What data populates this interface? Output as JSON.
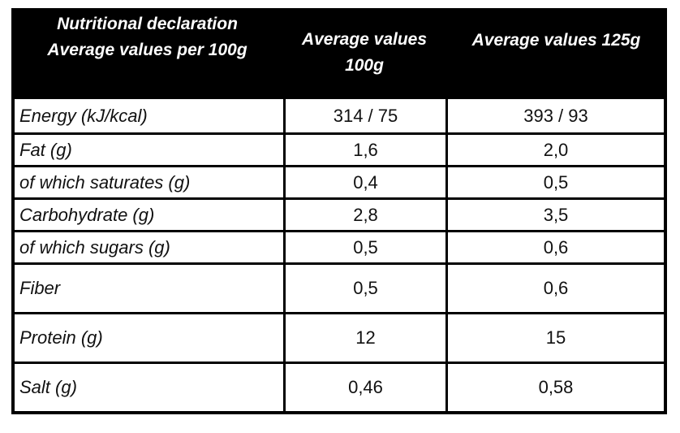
{
  "header": {
    "col0_line1": "Nutritional declaration",
    "col0_line2": "Average values per 100g",
    "col1_line1": "Average values",
    "col1_line2": "100g",
    "col2": "Average values 125g"
  },
  "rows": [
    {
      "label": "Energy (kJ/kcal)",
      "v100": "314 / 75",
      "v125": "393 / 93"
    },
    {
      "label": "Fat (g)",
      "v100": "1,6",
      "v125": "2,0"
    },
    {
      "label": "of which saturates (g)",
      "v100": "0,4",
      "v125": "0,5"
    },
    {
      "label": "Carbohydrate (g)",
      "v100": "2,8",
      "v125": "3,5"
    },
    {
      "label": "of which sugars (g)",
      "v100": "0,5",
      "v125": "0,6"
    },
    {
      "label": "Fiber",
      "v100": "0,5",
      "v125": "0,6"
    },
    {
      "label": "Protein (g)",
      "v100": "12",
      "v125": "15"
    },
    {
      "label": "Salt (g)",
      "v100": "0,46",
      "v125": "0,58"
    }
  ]
}
